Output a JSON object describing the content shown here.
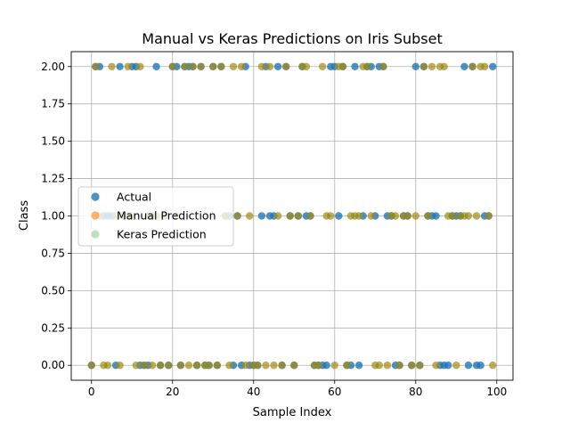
{
  "chart_data": {
    "type": "scatter",
    "title": "Manual vs Keras Predictions on Iris Subset",
    "xlabel": "Sample Index",
    "ylabel": "Class",
    "xlim": [
      -5,
      104
    ],
    "ylim": [
      -0.1,
      2.1
    ],
    "xticks": [
      0,
      20,
      40,
      60,
      80,
      100
    ],
    "yticks": [
      0.0,
      0.25,
      0.5,
      0.75,
      1.0,
      1.25,
      1.5,
      1.75,
      2.0
    ],
    "ytick_labels": [
      "0.00",
      "0.25",
      "0.50",
      "0.75",
      "1.00",
      "1.25",
      "1.50",
      "1.75",
      "2.00"
    ],
    "grid": true,
    "legend_position": "center-left",
    "x": [
      0,
      1,
      2,
      3,
      4,
      5,
      6,
      7,
      8,
      9,
      10,
      11,
      12,
      13,
      14,
      15,
      16,
      17,
      18,
      19,
      20,
      21,
      22,
      23,
      24,
      25,
      26,
      27,
      28,
      29,
      30,
      31,
      32,
      33,
      34,
      35,
      36,
      37,
      38,
      39,
      40,
      41,
      42,
      43,
      44,
      45,
      46,
      47,
      48,
      49,
      50,
      51,
      52,
      53,
      54,
      55,
      56,
      57,
      58,
      59,
      60,
      61,
      62,
      63,
      64,
      65,
      66,
      67,
      68,
      69,
      70,
      71,
      72,
      73,
      74,
      75,
      76,
      77,
      78,
      79,
      80,
      81,
      82,
      83,
      84,
      85,
      86,
      87,
      88,
      89,
      90,
      91,
      92,
      93,
      94,
      95,
      96,
      97,
      98,
      99
    ],
    "series": [
      {
        "name": "Actual",
        "color": "#1f77b4",
        "alpha": 0.8,
        "values": [
          0,
          2,
          2,
          1,
          1,
          1,
          0,
          2,
          1,
          1,
          2,
          2,
          0,
          0,
          0,
          1,
          2,
          0,
          1,
          0,
          2,
          2,
          0,
          2,
          2,
          2,
          0,
          2,
          0,
          0,
          2,
          0,
          2,
          1,
          1,
          0,
          1,
          0,
          2,
          0,
          0,
          0,
          1,
          2,
          1,
          1,
          2,
          0,
          2,
          1,
          0,
          1,
          2,
          1,
          1,
          0,
          0,
          0,
          0,
          2,
          2,
          1,
          2,
          0,
          0,
          2,
          0,
          1,
          2,
          2,
          1,
          2,
          2,
          1,
          1,
          0,
          0,
          1,
          1,
          0,
          2,
          0,
          2,
          1,
          1,
          1,
          0,
          0,
          0,
          1,
          1,
          1,
          2,
          0,
          2,
          0,
          0,
          1,
          1,
          2
        ]
      },
      {
        "name": "Manual Prediction",
        "color": "#ff7f0e",
        "alpha": 0.6,
        "values": [
          0,
          2,
          1,
          0,
          0,
          2,
          1,
          0,
          1,
          2,
          1,
          0,
          2,
          0,
          1,
          0,
          1,
          0,
          1,
          0,
          2,
          1,
          0,
          2,
          0,
          2,
          0,
          2,
          0,
          0,
          2,
          0,
          2,
          1,
          0,
          2,
          1,
          2,
          0,
          1,
          0,
          0,
          2,
          0,
          2,
          0,
          1,
          0,
          2,
          1,
          0,
          1,
          2,
          2,
          1,
          0,
          0,
          2,
          1,
          1,
          0,
          2,
          2,
          0,
          1,
          1,
          1,
          2,
          2,
          1,
          0,
          0,
          2,
          0,
          1,
          1,
          0,
          1,
          1,
          0,
          1,
          0,
          2,
          1,
          2,
          0,
          2,
          2,
          1,
          1,
          0,
          1,
          1,
          1,
          2,
          1,
          2,
          2,
          1,
          0
        ]
      },
      {
        "name": "Keras Prediction",
        "color": "#2ca02c",
        "alpha": 0.3,
        "values": [
          0,
          2,
          1,
          0,
          0,
          2,
          1,
          0,
          1,
          2,
          1,
          0,
          2,
          0,
          1,
          0,
          1,
          0,
          1,
          0,
          2,
          1,
          0,
          2,
          0,
          2,
          0,
          2,
          0,
          0,
          2,
          0,
          2,
          1,
          0,
          2,
          1,
          2,
          0,
          1,
          0,
          0,
          2,
          0,
          2,
          0,
          1,
          0,
          2,
          1,
          0,
          1,
          2,
          2,
          1,
          0,
          0,
          2,
          1,
          1,
          0,
          2,
          2,
          0,
          1,
          1,
          1,
          2,
          2,
          1,
          0,
          0,
          2,
          0,
          1,
          1,
          0,
          1,
          1,
          0,
          1,
          0,
          2,
          1,
          2,
          0,
          2,
          2,
          1,
          1,
          0,
          1,
          1,
          1,
          2,
          1,
          2,
          2,
          1,
          0
        ]
      }
    ]
  }
}
